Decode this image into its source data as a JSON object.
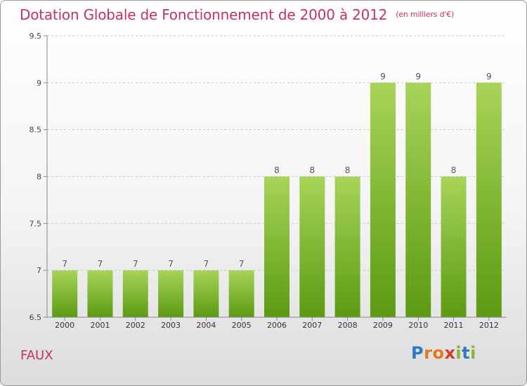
{
  "title": "Dotation Globale de Fonctionnement de 2000 à 2012",
  "unit": "(en milliers d'€)",
  "commune": "FAUX",
  "logo": {
    "text": "Proxiti",
    "colors": [
      "#2e7bc4",
      "#e07a1f",
      "#e07a1f",
      "#d43a2a",
      "#8fb32e",
      "#2e7bc4",
      "#8fb32e"
    ]
  },
  "colors": {
    "bar_top": "#a7d459",
    "bar_bottom": "#5c9a12",
    "title": "#c4326a",
    "grid": "#c8c8c8"
  },
  "chart_data": {
    "type": "bar",
    "title": "Dotation Globale de Fonctionnement de 2000 à 2012",
    "ylabel": "(en milliers d'€)",
    "xlabel": "",
    "categories": [
      "2000",
      "2001",
      "2002",
      "2003",
      "2004",
      "2005",
      "2006",
      "2007",
      "2008",
      "2009",
      "2010",
      "2011",
      "2012"
    ],
    "values": [
      7,
      7,
      7,
      7,
      7,
      7,
      8,
      8,
      8,
      9,
      9,
      8,
      9
    ],
    "data_labels": [
      "7",
      "7",
      "7",
      "7",
      "7",
      "7",
      "8",
      "8",
      "8",
      "9",
      "9",
      "8",
      "9"
    ],
    "ylim": [
      6.5,
      9.5
    ],
    "yticks": [
      6.5,
      7,
      7.5,
      8,
      8.5,
      9,
      9.5
    ],
    "ytick_labels": [
      "6.5",
      "7",
      "7.5",
      "8",
      "8.5",
      "9",
      "9.5"
    ],
    "grid": true
  }
}
